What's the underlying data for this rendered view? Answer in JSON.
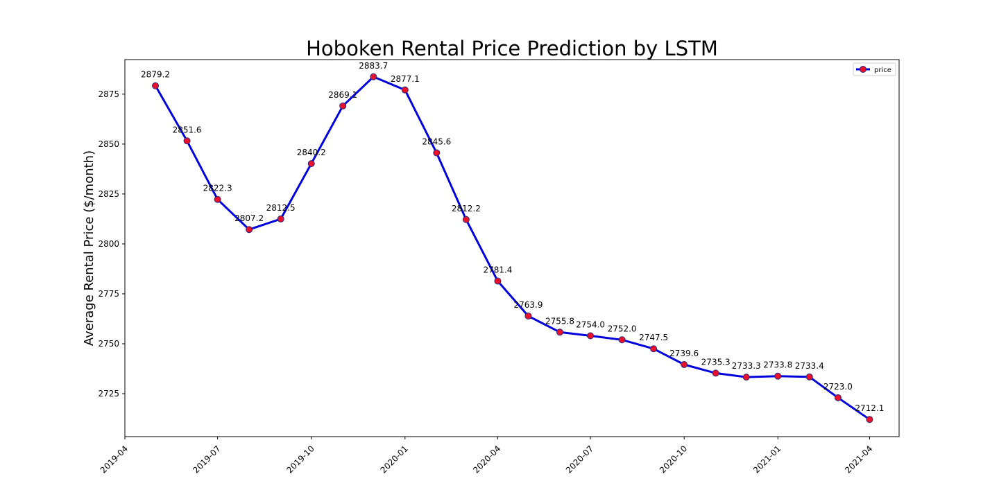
{
  "chart_data": {
    "type": "line",
    "title": "Hoboken Rental Price Prediction by LSTM",
    "xlabel": "",
    "ylabel": "Average Rental Price ($/month)",
    "x": [
      "2019-05",
      "2019-06",
      "2019-07",
      "2019-08",
      "2019-09",
      "2019-10",
      "2019-11",
      "2019-12",
      "2020-01",
      "2020-02",
      "2020-03",
      "2020-04",
      "2020-05",
      "2020-06",
      "2020-07",
      "2020-08",
      "2020-09",
      "2020-10",
      "2020-11",
      "2020-12",
      "2021-01",
      "2021-02",
      "2021-03",
      "2021-04"
    ],
    "series": [
      {
        "name": "price",
        "values": [
          2879.2,
          2851.6,
          2822.3,
          2807.2,
          2812.5,
          2840.2,
          2869.1,
          2883.7,
          2877.1,
          2845.6,
          2812.2,
          2781.4,
          2763.9,
          2755.8,
          2754.0,
          2752.0,
          2747.5,
          2739.6,
          2735.3,
          2733.3,
          2733.8,
          2733.4,
          2723.0,
          2712.1
        ],
        "labels": [
          "2879.2",
          "2851.6",
          "2822.3",
          "2807.2",
          "2812.5",
          "2840.2",
          "2869.1",
          "2883.7",
          "2877.1",
          "2845.6",
          "2812.2",
          "2781.4",
          "2763.9",
          "2755.8",
          "2754.0",
          "2752.0",
          "2747.5",
          "2739.6",
          "2735.3",
          "2733.3",
          "2733.8",
          "2733.4",
          "2723.0",
          "2712.1"
        ],
        "line_color": "#0000dd",
        "marker_color": "#e8102a",
        "marker_edge_color": "#2a2a80"
      }
    ],
    "x_ticks": [
      "2019-04",
      "2019-07",
      "2019-10",
      "2020-01",
      "2020-04",
      "2020-07",
      "2020-10",
      "2021-01",
      "2021-04"
    ],
    "y_ticks": [
      2725,
      2750,
      2775,
      2800,
      2825,
      2850,
      2875
    ],
    "xlim": [
      "2019-04-01",
      "2021-04-30"
    ],
    "ylim": [
      2703.5,
      2892.3
    ],
    "grid": false,
    "legend_position": "top-right"
  }
}
